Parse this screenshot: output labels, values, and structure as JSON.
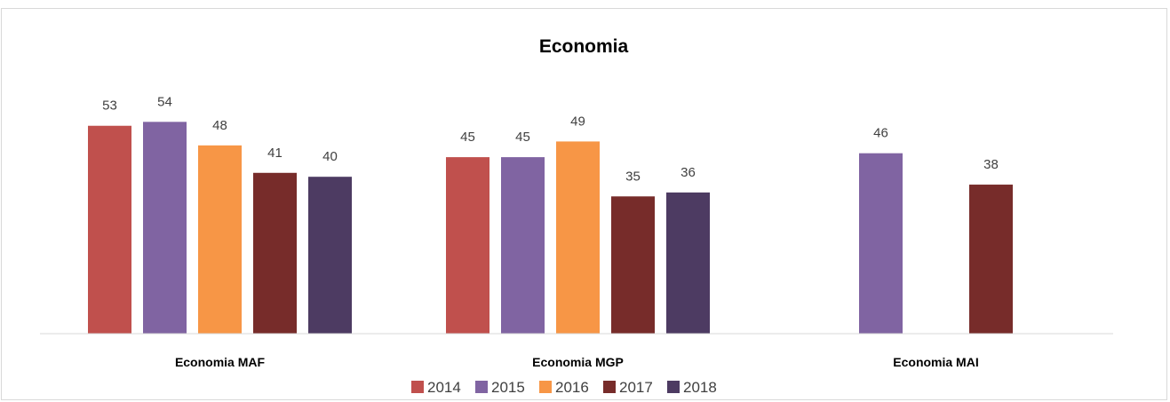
{
  "chart_data": {
    "type": "bar",
    "title": "Economia",
    "categories": [
      "Economia MAF",
      "Economia MGP",
      "Economia MAI"
    ],
    "series": [
      {
        "name": "2014",
        "color": "#c0504d",
        "values": [
          53,
          45,
          null
        ]
      },
      {
        "name": "2015",
        "color": "#8064a2",
        "values": [
          54,
          45,
          46
        ]
      },
      {
        "name": "2016",
        "color": "#f79646",
        "values": [
          48,
          49,
          null
        ]
      },
      {
        "name": "2017",
        "color": "#772c2a",
        "values": [
          41,
          35,
          38
        ]
      },
      {
        "name": "2018",
        "color": "#4d3b62",
        "values": [
          40,
          36,
          null
        ]
      }
    ],
    "xlabel": "",
    "ylabel": "",
    "ylim": [
      0,
      60
    ],
    "grid": false,
    "legend": "bottom",
    "data_labels": true
  }
}
